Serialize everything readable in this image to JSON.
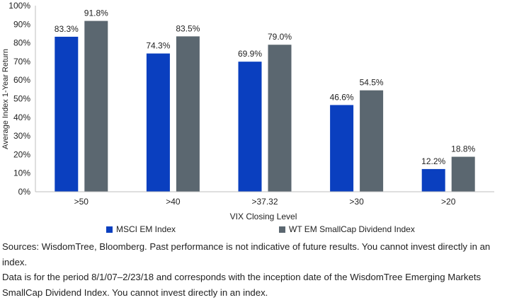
{
  "chart_data": {
    "type": "bar",
    "categories": [
      ">50",
      ">40",
      ">37.32",
      ">30",
      ">20"
    ],
    "series": [
      {
        "name": "MSCI EM Index",
        "color": "#0a3fbf",
        "values": [
          83.3,
          74.3,
          69.9,
          46.6,
          12.2
        ],
        "labels": [
          "83.3%",
          "74.3%",
          "69.9%",
          "46.6%",
          "12.2%"
        ]
      },
      {
        "name": "WT EM SmallCap Dividend Index",
        "color": "#5b6770",
        "values": [
          91.8,
          83.5,
          79.0,
          54.5,
          18.8
        ],
        "labels": [
          "91.8%",
          "83.5%",
          "79.0%",
          "54.5%",
          "18.8%"
        ]
      }
    ],
    "xlabel": "VIX Closing Level",
    "ylabel": "Average Index 1-Year Return",
    "ylim": [
      0,
      100
    ],
    "yticks": [
      "0%",
      "10%",
      "20%",
      "30%",
      "40%",
      "50%",
      "60%",
      "70%",
      "80%",
      "90%",
      "100%"
    ],
    "grid": false,
    "legend_position": "bottom"
  },
  "footnote": {
    "line1": "Sources: WisdomTree, Bloomberg. Past performance is not indicative of future results. You cannot invest directly in an index.",
    "line2": "Data is for the period 8/1/07–2/23/18 and corresponds with the inception date of the WisdomTree Emerging Markets SmallCap Dividend Index. You cannot invest directly in an index."
  }
}
